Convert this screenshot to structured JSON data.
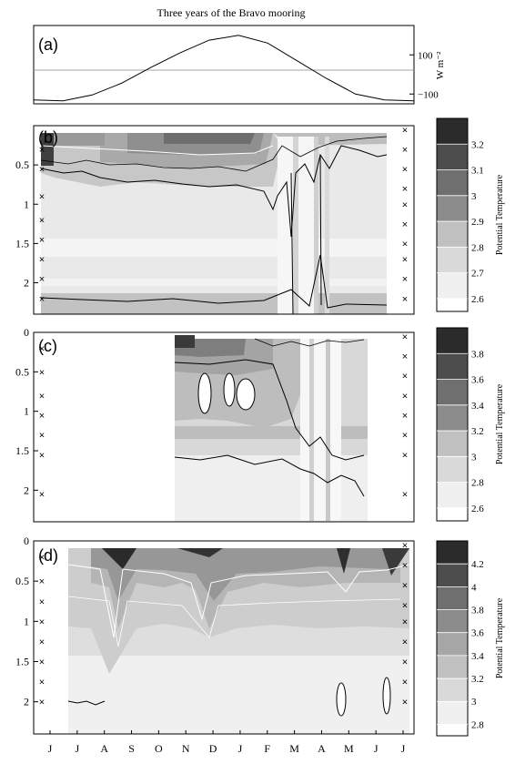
{
  "title": "Three years of the Bravo mooring",
  "months": [
    "J",
    "J",
    "A",
    "S",
    "O",
    "N",
    "D",
    "J",
    "F",
    "M",
    "A",
    "M",
    "J",
    "J"
  ],
  "chart_data": [
    {
      "type": "line",
      "panel": "(a)",
      "ylabel": "W m⁻²",
      "yticks": [
        "100",
        "−100"
      ],
      "ytick_values": [
        100,
        -100
      ],
      "ylim": [
        -150,
        250
      ],
      "zero_line": 0,
      "x": [
        0,
        1,
        2,
        3,
        4,
        5,
        6,
        7,
        8,
        9,
        10,
        11,
        12,
        13
      ],
      "y": [
        -130,
        -135,
        -105,
        -45,
        35,
        110,
        175,
        200,
        160,
        70,
        -20,
        -100,
        -130,
        -135
      ]
    },
    {
      "type": "heatmap",
      "panel": "(b)",
      "yticks": [
        "0.5",
        "1",
        "1.5",
        "2"
      ],
      "ytick_values": [
        0.5,
        1,
        1.5,
        2
      ],
      "ylim": [
        2.4,
        0
      ],
      "colorbar_label": "Potential Temperature",
      "colorbar_ticks": [
        "3.2",
        "3.1",
        "3",
        "2.9",
        "2.8",
        "2.7",
        "2.6"
      ],
      "levels": [
        2.6,
        2.7,
        2.8,
        2.9,
        3.0,
        3.1,
        3.2
      ],
      "sensor_depths_left": [
        0.3,
        0.55,
        0.9,
        1.2,
        1.45,
        1.7,
        1.95,
        2.2
      ],
      "sensor_depths_right": [
        0.05,
        0.3,
        0.55,
        0.8,
        1.0,
        1.25,
        1.5,
        1.7,
        1.95,
        2.2
      ]
    },
    {
      "type": "heatmap",
      "panel": "(c)",
      "yticks": [
        "0",
        "0.5",
        "1",
        "1.5",
        "2"
      ],
      "ytick_values": [
        0,
        0.5,
        1,
        1.5,
        2
      ],
      "ylim": [
        2.4,
        0
      ],
      "colorbar_label": "Potential Temperature",
      "colorbar_ticks": [
        "3.8",
        "3.6",
        "3.4",
        "3.2",
        "3",
        "2.8",
        "2.6"
      ],
      "levels": [
        2.6,
        2.8,
        3.0,
        3.2,
        3.4,
        3.6,
        3.8
      ],
      "sensor_depths_left": [
        0.2,
        0.5,
        0.8,
        1.05,
        1.3,
        1.55,
        2.05
      ],
      "sensor_depths_right": [
        0.05,
        0.3,
        0.55,
        0.8,
        1.05,
        1.3,
        1.55,
        2.05
      ]
    },
    {
      "type": "heatmap",
      "panel": "(d)",
      "yticks": [
        "0",
        "0.5",
        "1",
        "1.5",
        "2"
      ],
      "ytick_values": [
        0,
        0.5,
        1,
        1.5,
        2
      ],
      "ylim": [
        2.4,
        0
      ],
      "colorbar_label": "Potential Temperature",
      "colorbar_ticks": [
        "4.2",
        "4",
        "3.8",
        "3.6",
        "3.4",
        "3.2",
        "3",
        "2.8"
      ],
      "levels": [
        2.8,
        3.0,
        3.2,
        3.4,
        3.6,
        3.8,
        4.0,
        4.2
      ],
      "sensor_depths_left": [
        0.2,
        0.5,
        0.75,
        1.0,
        1.25,
        1.5,
        1.75,
        2.0
      ],
      "sensor_depths_right": [
        0.05,
        0.3,
        0.55,
        0.8,
        1.0,
        1.25,
        1.5,
        1.75,
        2.0
      ]
    }
  ]
}
